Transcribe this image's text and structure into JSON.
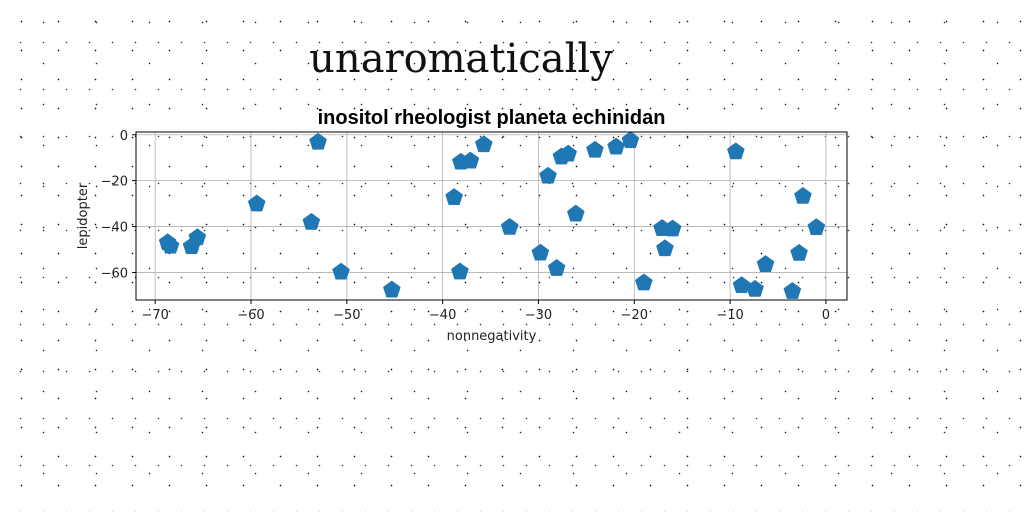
{
  "page": {
    "title": "unaromatically"
  },
  "chart_data": {
    "type": "scatter",
    "title": "inositol rheologist planeta echinidan",
    "xlabel": "nonnegativity",
    "ylabel": "lepidopter",
    "xlim": [
      -72,
      2.2
    ],
    "ylim": [
      -72,
      1.2
    ],
    "xticks": [
      -70,
      -60,
      -50,
      -40,
      -30,
      -20,
      -10,
      0
    ],
    "yticks": [
      0,
      -20,
      -40,
      -60
    ],
    "grid": true,
    "marker": "pentagon",
    "color": "#1f77b4",
    "series": [
      {
        "points": [
          [
            -68.7,
            -47
          ],
          [
            -68.4,
            -48.5
          ],
          [
            -66.2,
            -48.7
          ],
          [
            -65.6,
            -44.8
          ],
          [
            -59.4,
            -30.1
          ],
          [
            -53.7,
            -38.1
          ],
          [
            -53.0,
            -3.2
          ],
          [
            -50.6,
            -59.8
          ],
          [
            -45.3,
            -67.6
          ],
          [
            -38.8,
            -27.3
          ],
          [
            -38.2,
            -59.7
          ],
          [
            -38.1,
            -11.9
          ],
          [
            -37.1,
            -11.4
          ],
          [
            -35.7,
            -4.3
          ],
          [
            -33.0,
            -40.3
          ],
          [
            -29.8,
            -51.5
          ],
          [
            -29.0,
            -18.0
          ],
          [
            -28.1,
            -58.2
          ],
          [
            -27.6,
            -9.6
          ],
          [
            -26.9,
            -8.4
          ],
          [
            -26.1,
            -34.5
          ],
          [
            -24.1,
            -6.7
          ],
          [
            -21.9,
            -5.3
          ],
          [
            -20.4,
            -2.5
          ],
          [
            -19.0,
            -64.5
          ],
          [
            -17.1,
            -40.8
          ],
          [
            -16.8,
            -49.6
          ],
          [
            -16.0,
            -41.0
          ],
          [
            -9.4,
            -7.4
          ],
          [
            -8.8,
            -65.7
          ],
          [
            -7.4,
            -67.3
          ],
          [
            -6.3,
            -56.5
          ],
          [
            -3.5,
            -68.2
          ],
          [
            -2.8,
            -51.6
          ],
          [
            -2.4,
            -26.8
          ],
          [
            -1.0,
            -40.4
          ]
        ]
      }
    ]
  }
}
